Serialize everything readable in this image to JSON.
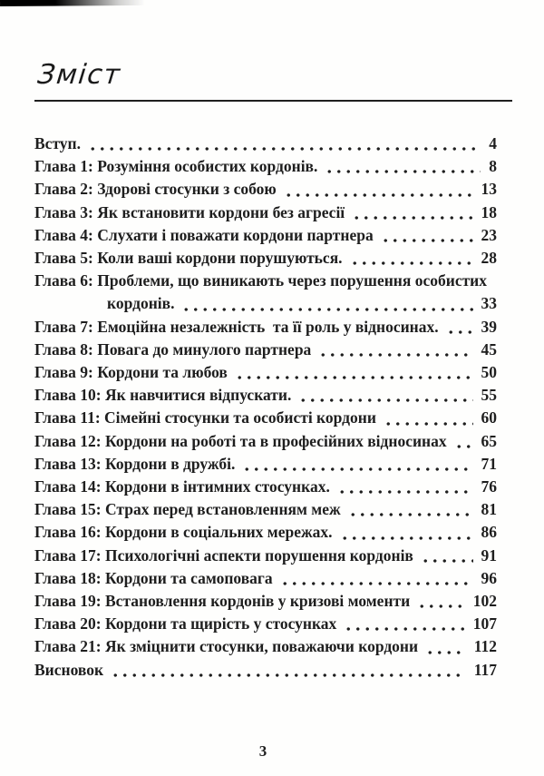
{
  "header": {
    "title": "Зміст"
  },
  "toc": {
    "entries": [
      {
        "label": "Вступ.",
        "page": "4"
      },
      {
        "label": "Глава 1: Розуміння особистих кордонів.",
        "page": "8"
      },
      {
        "label": "Глава 2: Здорові стосунки з собою",
        "page": "13"
      },
      {
        "label": "Глава 3: Як встановити кордони без агресії",
        "page": "18"
      },
      {
        "label": "Глава 4: Слухати і поважати кордони партнера",
        "page": "23"
      },
      {
        "label": "Глава 5: Коли ваші кордони порушуються.",
        "page": "28"
      },
      {
        "label": "Глава 6: Проблеми, що виникають через порушення особистих",
        "page": "",
        "no_leader": true
      },
      {
        "label": "кордонів.",
        "page": "33",
        "indent": true
      },
      {
        "label": "Глава 7: Емоційна незалежність  та її роль у відносинах.",
        "page": "39"
      },
      {
        "label": "Глава 8: Повага до минулого партнера",
        "page": "45"
      },
      {
        "label": "Глава 9: Кордони та любов",
        "page": "50"
      },
      {
        "label": "Глава 10: Як навчитися відпускати.",
        "page": "55"
      },
      {
        "label": "Глава 11: Сімейні стосунки та особисті кордони",
        "page": "60"
      },
      {
        "label": "Глава 12: Кордони на роботі та в професійних відносинах",
        "page": "65"
      },
      {
        "label": "Глава 13: Кордони в дружбі.",
        "page": "71"
      },
      {
        "label": "Глава 14: Кордони в інтимних стосунках.",
        "page": "76"
      },
      {
        "label": "Глава 15: Страх перед встановленням меж",
        "page": "81"
      },
      {
        "label": "Глава 16: Кордони в соціальних мережах.",
        "page": "86"
      },
      {
        "label": "Глава 17: Психологічні аспекти порушення кордонів",
        "page": "91"
      },
      {
        "label": "Глава 18: Кордони та самоповага",
        "page": "96"
      },
      {
        "label": "Глава 19: Встановлення кордонів у кризові моменти",
        "page": "102"
      },
      {
        "label": "Глава 20: Кордони та щирість у стосунках",
        "page": "107"
      },
      {
        "label": "Глава 21: Як зміцнити стосунки, поважаючи кордони",
        "page": "112"
      },
      {
        "label": "Висновок",
        "page": "117"
      }
    ]
  },
  "footer": {
    "page_number": "3"
  }
}
